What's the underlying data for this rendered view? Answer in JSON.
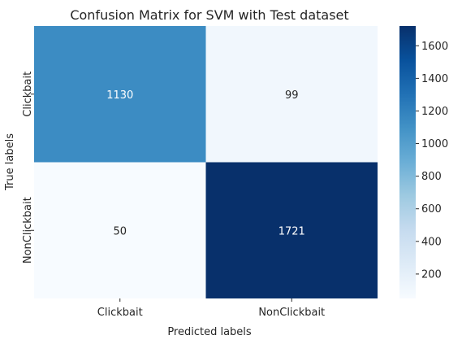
{
  "chart_data": {
    "type": "heatmap",
    "title": "Confusion Matrix for SVM with Test dataset",
    "xlabel": "Predicted labels",
    "ylabel": "True labels",
    "x_categories": [
      "Clickbait",
      "NonClickbait"
    ],
    "y_categories": [
      "Clickbait",
      "NonClickbait"
    ],
    "values": [
      [
        1130,
        99
      ],
      [
        50,
        1721
      ]
    ],
    "colormap": "Blues",
    "colorbar": {
      "min": 50,
      "max": 1721,
      "ticks": [
        200,
        400,
        600,
        800,
        1000,
        1200,
        1400,
        1600
      ]
    }
  }
}
